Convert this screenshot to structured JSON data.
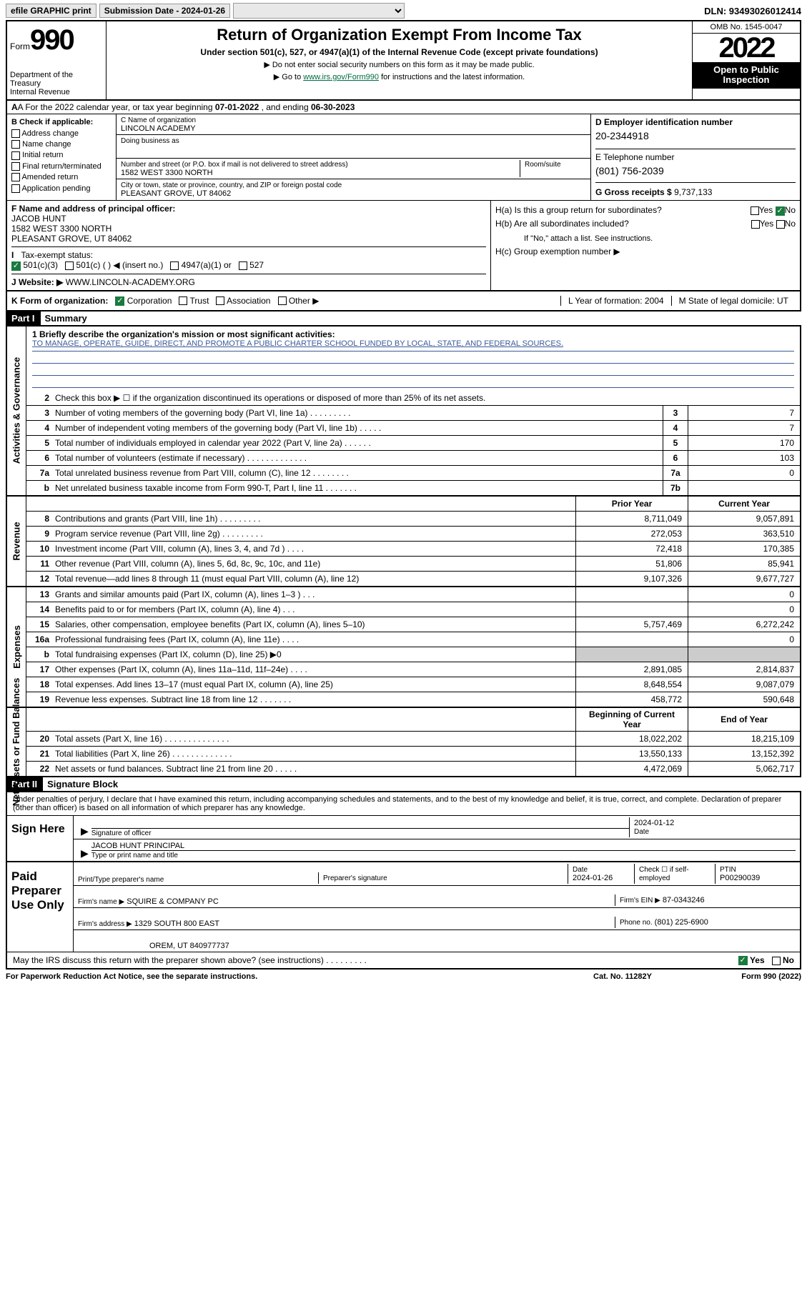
{
  "topbar": {
    "efile": "efile GRAPHIC print",
    "sub_label": "Submission Date - 2024-01-26",
    "dropdown": "",
    "dln": "DLN: 93493026012414"
  },
  "header": {
    "form_word": "Form",
    "form_num": "990",
    "dept": "Department of the Treasury\nInternal Revenue Service",
    "title": "Return of Organization Exempt From Income Tax",
    "subtitle": "Under section 501(c), 527, or 4947(a)(1) of the Internal Revenue Code (except private foundations)",
    "note1": "▶ Do not enter social security numbers on this form as it may be made public.",
    "note2": "▶ Go to ",
    "note2_link": "www.irs.gov/Form990",
    "note2_suffix": " for instructions and the latest information.",
    "omb": "OMB No. 1545-0047",
    "year": "2022",
    "otp": "Open to Public Inspection"
  },
  "rowA": {
    "prefix": "A For the 2022 calendar year, or tax year beginning ",
    "begin": "07-01-2022",
    "mid": " , and ending ",
    "end": "06-30-2023"
  },
  "colB": {
    "title": "B Check if applicable:",
    "items": [
      "Address change",
      "Name change",
      "Initial return",
      "Final return/terminated",
      "Amended return",
      "Application pending"
    ]
  },
  "colC": {
    "name_lbl": "C Name of organization",
    "name": "LINCOLN ACADEMY",
    "dba_lbl": "Doing business as",
    "dba": "",
    "addr_lbl": "Number and street (or P.O. box if mail is not delivered to street address)",
    "room_lbl": "Room/suite",
    "addr": "1582 WEST 3300 NORTH",
    "city_lbl": "City or town, state or province, country, and ZIP or foreign postal code",
    "city": "PLEASANT GROVE, UT  84062"
  },
  "colD": {
    "ein_lbl": "D Employer identification number",
    "ein": "20-2344918",
    "tel_lbl": "E Telephone number",
    "tel": "(801) 756-2039",
    "gross_lbl": "G Gross receipts $",
    "gross": "9,737,133"
  },
  "secF": {
    "lbl": "F Name and address of principal officer:",
    "name": "JACOB HUNT",
    "addr1": "1582 WEST 3300 NORTH",
    "addr2": "PLEASANT GROVE, UT  84062"
  },
  "secH": {
    "a": "H(a)  Is this a group return for subordinates?",
    "a_yes": "Yes",
    "a_no": "No",
    "b": "H(b)  Are all subordinates included?",
    "b_yes": "Yes",
    "b_no": "No",
    "b_note": "If \"No,\" attach a list. See instructions.",
    "c": "H(c)  Group exemption number ▶"
  },
  "rowI": {
    "lbl": "I   Tax-exempt status:",
    "o1": "501(c)(3)",
    "o2": "501(c) (  ) ◀ (insert no.)",
    "o3": "4947(a)(1) or",
    "o4": "527"
  },
  "rowJ": {
    "lbl": "J   Website: ▶",
    "val": "WWW.LINCOLN-ACADEMY.ORG"
  },
  "rowK": {
    "lbl": "K Form of organization:",
    "o1": "Corporation",
    "o2": "Trust",
    "o3": "Association",
    "o4": "Other ▶",
    "l": "L Year of formation: 2004",
    "m": "M State of legal domicile: UT"
  },
  "part1": {
    "hdr": "Part I",
    "title": "Summary"
  },
  "mission": {
    "lbl": "1   Briefly describe the organization's mission or most significant activities:",
    "text": "TO MANAGE, OPERATE, GUIDE, DIRECT, AND PROMOTE A PUBLIC CHARTER SCHOOL FUNDED BY LOCAL, STATE, AND FEDERAL SOURCES."
  },
  "gov": {
    "vtab": "Activities & Governance",
    "l2": "Check this box ▶ ☐  if the organization discontinued its operations or disposed of more than 25% of its net assets.",
    "rows": [
      {
        "n": "3",
        "t": "Number of voting members of the governing body (Part VI, line 1a)  .   .   .   .   .   .   .   .   .",
        "box": "3",
        "v": "7"
      },
      {
        "n": "4",
        "t": "Number of independent voting members of the governing body (Part VI, line 1b)  .   .   .   .   .",
        "box": "4",
        "v": "7"
      },
      {
        "n": "5",
        "t": "Total number of individuals employed in calendar year 2022 (Part V, line 2a)  .   .   .   .   .   .",
        "box": "5",
        "v": "170"
      },
      {
        "n": "6",
        "t": "Total number of volunteers (estimate if necessary)  .   .   .   .   .   .   .   .   .   .   .   .   .",
        "box": "6",
        "v": "103"
      },
      {
        "n": "7a",
        "t": "Total unrelated business revenue from Part VIII, column (C), line 12  .   .   .   .   .   .   .   .",
        "box": "7a",
        "v": "0"
      },
      {
        "n": "b",
        "t": "Net unrelated business taxable income from Form 990-T, Part I, line 11  .   .   .   .   .   .   .",
        "box": "7b",
        "v": ""
      }
    ]
  },
  "rev": {
    "vtab": "Revenue",
    "hdr_prior": "Prior Year",
    "hdr_cur": "Current Year",
    "rows": [
      {
        "n": "8",
        "t": "Contributions and grants (Part VIII, line 1h)  .   .   .   .   .   .   .   .   .",
        "p": "8,711,049",
        "c": "9,057,891"
      },
      {
        "n": "9",
        "t": "Program service revenue (Part VIII, line 2g)  .   .   .   .   .   .   .   .   .",
        "p": "272,053",
        "c": "363,510"
      },
      {
        "n": "10",
        "t": "Investment income (Part VIII, column (A), lines 3, 4, and 7d )  .   .   .   .",
        "p": "72,418",
        "c": "170,385"
      },
      {
        "n": "11",
        "t": "Other revenue (Part VIII, column (A), lines 5, 6d, 8c, 9c, 10c, and 11e)",
        "p": "51,806",
        "c": "85,941"
      },
      {
        "n": "12",
        "t": "Total revenue—add lines 8 through 11 (must equal Part VIII, column (A), line 12)",
        "p": "9,107,326",
        "c": "9,677,727"
      }
    ]
  },
  "exp": {
    "vtab": "Expenses",
    "rows": [
      {
        "n": "13",
        "t": "Grants and similar amounts paid (Part IX, column (A), lines 1–3 )  .   .   .",
        "p": "",
        "c": "0"
      },
      {
        "n": "14",
        "t": "Benefits paid to or for members (Part IX, column (A), line 4)  .   .   .",
        "p": "",
        "c": "0"
      },
      {
        "n": "15",
        "t": "Salaries, other compensation, employee benefits (Part IX, column (A), lines 5–10)",
        "p": "5,757,469",
        "c": "6,272,242"
      },
      {
        "n": "16a",
        "t": "Professional fundraising fees (Part IX, column (A), line 11e)  .   .   .   .",
        "p": "",
        "c": "0"
      },
      {
        "n": "b",
        "t": "Total fundraising expenses (Part IX, column (D), line 25) ▶0",
        "p": "gray",
        "c": "gray"
      },
      {
        "n": "17",
        "t": "Other expenses (Part IX, column (A), lines 11a–11d, 11f–24e)  .   .   .   .",
        "p": "2,891,085",
        "c": "2,814,837"
      },
      {
        "n": "18",
        "t": "Total expenses. Add lines 13–17 (must equal Part IX, column (A), line 25)",
        "p": "8,648,554",
        "c": "9,087,079"
      },
      {
        "n": "19",
        "t": "Revenue less expenses. Subtract line 18 from line 12  .   .   .   .   .   .   .",
        "p": "458,772",
        "c": "590,648"
      }
    ]
  },
  "net": {
    "vtab": "Net Assets or Fund Balances",
    "hdr_prior": "Beginning of Current Year",
    "hdr_cur": "End of Year",
    "rows": [
      {
        "n": "20",
        "t": "Total assets (Part X, line 16)  .   .   .   .   .   .   .   .   .   .   .   .   .   .",
        "p": "18,022,202",
        "c": "18,215,109"
      },
      {
        "n": "21",
        "t": "Total liabilities (Part X, line 26)  .   .   .   .   .   .   .   .   .   .   .   .   .",
        "p": "13,550,133",
        "c": "13,152,392"
      },
      {
        "n": "22",
        "t": "Net assets or fund balances. Subtract line 21 from line 20  .   .   .   .   .",
        "p": "4,472,069",
        "c": "5,062,717"
      }
    ]
  },
  "part2": {
    "hdr": "Part II",
    "title": "Signature Block"
  },
  "sig": {
    "pen": "Under penalties of perjury, I declare that I have examined this return, including accompanying schedules and statements, and to the best of my knowledge and belief, it is true, correct, and complete. Declaration of preparer (other than officer) is based on all information of which preparer has any knowledge.",
    "sign_here": "Sign Here",
    "sig_of": "Signature of officer",
    "date": "2024-01-12",
    "date_lbl": "Date",
    "name": "JACOB HUNT  PRINCIPAL",
    "name_lbl": "Type or print name and title",
    "paid": "Paid Preparer Use Only",
    "prep_name_lbl": "Print/Type preparer's name",
    "prep_sig_lbl": "Preparer's signature",
    "prep_date_lbl": "Date",
    "prep_date": "2024-01-26",
    "check_lbl": "Check ☐ if self-employed",
    "ptin_lbl": "PTIN",
    "ptin": "P00290039",
    "firm_name_lbl": "Firm's name    ▶",
    "firm_name": "SQUIRE & COMPANY PC",
    "firm_ein_lbl": "Firm's EIN ▶",
    "firm_ein": "87-0343246",
    "firm_addr_lbl": "Firm's address ▶",
    "firm_addr1": "1329 SOUTH 800 EAST",
    "firm_addr2": "OREM, UT  840977737",
    "phone_lbl": "Phone no.",
    "phone": "(801) 225-6900",
    "may": "May the IRS discuss this return with the preparer shown above? (see instructions)  .   .   .   .   .   .   .   .   .",
    "yes": "Yes",
    "no": "No"
  },
  "footer": {
    "l": "For Paperwork Reduction Act Notice, see the separate instructions.",
    "m": "Cat. No. 11282Y",
    "r": "Form 990 (2022)"
  }
}
